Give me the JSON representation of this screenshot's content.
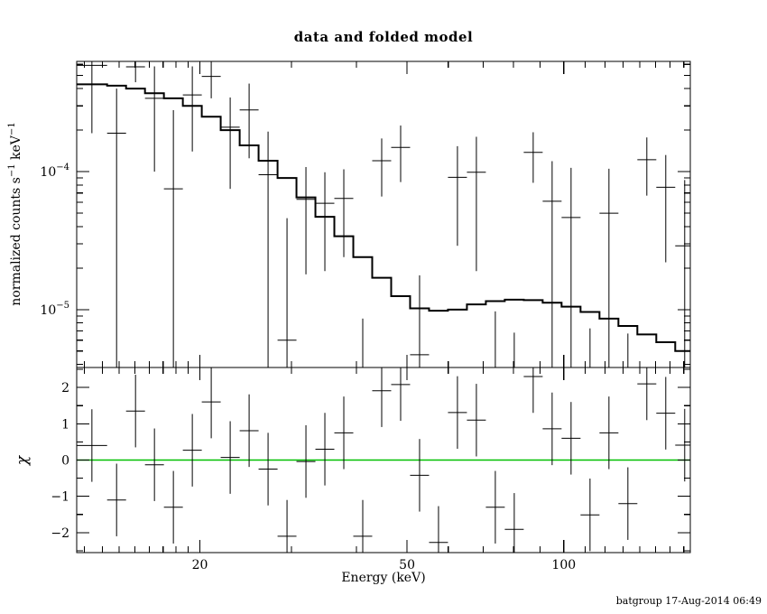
{
  "window": {
    "footer": "batgroup 17-Aug-2014 06:49"
  },
  "colors": {
    "foreground": "#000000",
    "model_line": "#000000",
    "zero_line": "#00c000",
    "background": "#ffffff"
  },
  "chart_data": [
    {
      "type": "scatter",
      "name": "spectrum",
      "title": "data and folded model",
      "xlabel": "Energy (keV)",
      "ylabel_parts": [
        {
          "t": "normalized counts s"
        },
        {
          "t": "−1",
          "sup": true
        },
        {
          "t": " keV"
        },
        {
          "t": "−1",
          "sup": true
        }
      ],
      "xscale": "log",
      "yscale": "log",
      "xlim": [
        11.6,
        175
      ],
      "ylim": [
        3.8e-06,
        0.00063
      ],
      "grid": false,
      "xticks": [
        {
          "value": 20,
          "label": "20"
        },
        {
          "value": 50,
          "label": "50"
        },
        {
          "value": 100,
          "label": "100"
        }
      ],
      "yticks": [
        {
          "value": 0.0001,
          "mantissa": "10",
          "exponent": "−4"
        },
        {
          "value": 1e-05,
          "mantissa": "10",
          "exponent": "−5"
        }
      ],
      "series": [
        {
          "name": "data",
          "style": "cross-errorbars",
          "color": "#000000"
        },
        {
          "name": "folded model",
          "style": "step-histogram",
          "color": "#000000"
        }
      ],
      "bins_columns": [
        "E_lo_keV",
        "E_hi_keV",
        "rate",
        "rate_err",
        "model",
        "chi"
      ],
      "bins": [
        [
          11.6,
          13.27,
          0.00059,
          0.0004,
          0.00043,
          0.4
        ],
        [
          13.27,
          14.43,
          0.00019,
          0.00021,
          0.00042,
          -1.1
        ],
        [
          14.43,
          15.69,
          0.000575,
          0.00013,
          0.0004,
          1.35
        ],
        [
          15.69,
          17.06,
          0.00034,
          0.00024,
          0.00037,
          -0.13
        ],
        [
          17.06,
          18.55,
          7.5e-05,
          0.000204,
          0.00034,
          -1.3
        ],
        [
          18.55,
          20.17,
          0.00036,
          0.00022,
          0.0003,
          0.27
        ],
        [
          20.17,
          21.93,
          0.00049,
          0.00015,
          0.00025,
          1.6
        ],
        [
          21.93,
          23.85,
          0.00021,
          0.000135,
          0.0002,
          0.07
        ],
        [
          23.85,
          25.93,
          0.00028,
          0.000155,
          0.000155,
          0.81
        ],
        [
          25.93,
          28.2,
          9.5e-05,
          0.0001,
          0.00012,
          -0.25
        ],
        [
          28.2,
          30.66,
          6e-06,
          4e-05,
          9e-05,
          -2.1
        ],
        [
          30.66,
          33.34,
          6.3e-05,
          4.5e-05,
          6.5e-05,
          -0.04
        ],
        [
          33.34,
          36.25,
          5.9e-05,
          4e-05,
          4.7e-05,
          0.3
        ],
        [
          36.25,
          39.42,
          6.4e-05,
          4e-05,
          3.4e-05,
          0.75
        ],
        [
          39.42,
          42.86,
          -5.4e-06,
          1.4e-05,
          2.4e-05,
          -2.1
        ],
        [
          42.86,
          46.61,
          0.00012,
          5.4e-05,
          1.7e-05,
          1.91
        ],
        [
          46.61,
          50.68,
          0.00015,
          6.6e-05,
          1.25e-05,
          2.08
        ],
        [
          50.68,
          55.11,
          4.7e-06,
          1.3e-05,
          1.02e-05,
          -0.42
        ],
        [
          55.11,
          59.92,
          -1.3e-06,
          4.9e-06,
          9.8e-06,
          -2.27
        ],
        [
          59.92,
          65.16,
          9.1e-05,
          6.2e-05,
          1e-05,
          1.31
        ],
        [
          65.16,
          70.85,
          9.9e-05,
          8e-05,
          1.09e-05,
          1.1
        ],
        [
          70.85,
          77.04,
          3.7e-06,
          6e-06,
          1.15e-05,
          -1.3
        ],
        [
          77.04,
          83.77,
          1.3e-06,
          5.5e-06,
          1.18e-05,
          -1.91
        ],
        [
          83.77,
          91.09,
          0.000138,
          5.5e-05,
          1.17e-05,
          2.3
        ],
        [
          91.09,
          99.04,
          6.1e-05,
          5.8e-05,
          1.12e-05,
          0.86
        ],
        [
          99.04,
          107.7,
          4.65e-05,
          6e-05,
          1.05e-05,
          0.6
        ],
        [
          107.7,
          117.11,
          2.8e-06,
          4.5e-06,
          9.6e-06,
          -1.51
        ],
        [
          117.11,
          127.34,
          5e-05,
          5.5e-05,
          8.6e-06,
          0.75
        ],
        [
          127.34,
          138.46,
          2.2e-06,
          4.5e-06,
          7.6e-06,
          -1.2
        ],
        [
          138.46,
          150.56,
          0.000122,
          5.5e-05,
          6.6e-06,
          2.1
        ],
        [
          150.56,
          163.71,
          7.7e-05,
          5.5e-05,
          5.8e-06,
          1.29
        ],
        [
          163.71,
          178.02,
          2.9e-05,
          5.8e-05,
          5e-06,
          0.41
        ]
      ]
    },
    {
      "type": "scatter",
      "name": "residuals",
      "ylabel": "χ",
      "yscale": "linear",
      "x_shared": true,
      "ylim": [
        -2.55,
        2.55
      ],
      "yticks": [
        {
          "value": 2,
          "label": "2"
        },
        {
          "value": 1,
          "label": "1"
        },
        {
          "value": 0,
          "label": "0"
        },
        {
          "value": -1,
          "label": "−1"
        },
        {
          "value": -2,
          "label": "−2"
        }
      ],
      "chi_err": 1,
      "zero_line": 0
    }
  ]
}
